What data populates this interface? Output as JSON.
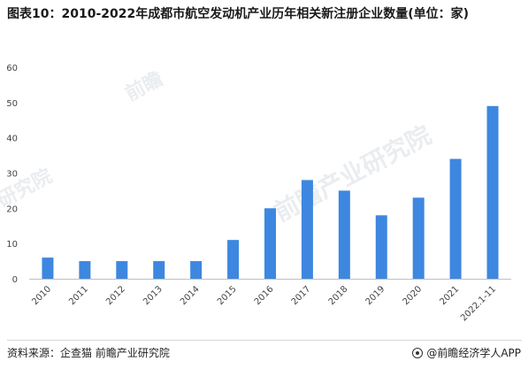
{
  "title": "图表10：2010-2022年成都市航空发动机产业历年相关新注册企业数量(单位：家)",
  "footer": {
    "source": "资料来源：企查猫 前瞻产业研究院",
    "brand": "@前瞻经济学人APP"
  },
  "watermark": {
    "text1": "前瞻",
    "text2": "前瞻产业研究院",
    "text3": "研究院"
  },
  "chart_data": {
    "type": "bar",
    "title": "",
    "xlabel": "",
    "ylabel": "",
    "ylim": [
      0,
      60
    ],
    "yticks": [
      0,
      10,
      20,
      30,
      40,
      50,
      60
    ],
    "grid": false,
    "bar_color": "#3d87e0",
    "categories": [
      "2010",
      "2011",
      "2012",
      "2013",
      "2014",
      "2015",
      "2016",
      "2017",
      "2018",
      "2019",
      "2020",
      "2021",
      "2022.1-11"
    ],
    "values": [
      6,
      5,
      5,
      5,
      5,
      11,
      20,
      28,
      25,
      18,
      23,
      34,
      49
    ]
  }
}
